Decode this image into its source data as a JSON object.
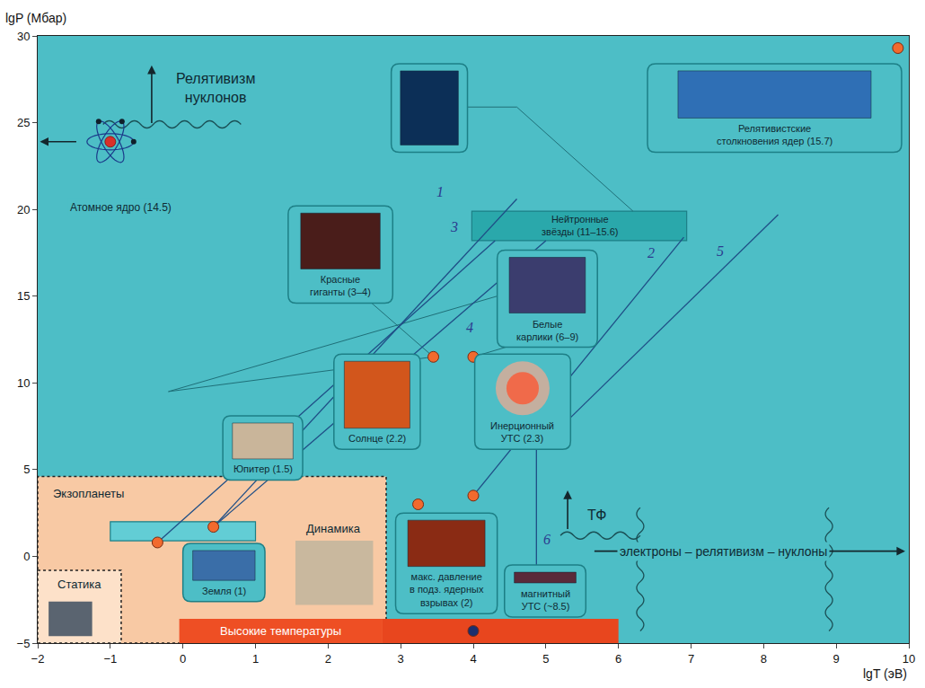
{
  "chart_data": {
    "type": "scatter",
    "x_label": "lgT (эВ)",
    "y_label": "lgP (Мбар)",
    "xlim": [
      -2,
      10
    ],
    "xticks": [
      -2,
      -1,
      0,
      1,
      2,
      3,
      4,
      5,
      6,
      7,
      8,
      9,
      10
    ],
    "ylim": [
      -5,
      30
    ],
    "yticks": [
      -5,
      0,
      5,
      10,
      15,
      20,
      25,
      30
    ],
    "grid": false,
    "color": "#4dbec6",
    "regions": [
      {
        "label": "Экзопланеты",
        "label_x": -1.3,
        "label_y": 3.6,
        "x": [
          -2,
          2.8
        ],
        "y": [
          -5,
          4.6
        ],
        "color": "#f8c9a4",
        "line_style": "dot"
      },
      {
        "label": "Статика",
        "label_x": -1.42,
        "label_y": -1.6,
        "x": [
          -2,
          -0.85
        ],
        "y": [
          -5,
          -0.8
        ],
        "color": "#fde1c9",
        "line_style": "dot"
      },
      {
        "label": "Высокие температуры",
        "label_x": 1.35,
        "label_y": -4.3,
        "x": [
          -0.05,
          2.75
        ],
        "y": [
          -5,
          -3.6
        ],
        "color": "#ee4f24",
        "line_style": "none"
      },
      {
        "x": [
          2.75,
          6.0
        ],
        "y": [
          -5,
          -3.6
        ],
        "color": "#e8461e",
        "line_style": "none"
      },
      {
        "x": [
          -1.0,
          1.0
        ],
        "y": [
          0.9,
          2.0
        ],
        "color": "#62cdd5",
        "line_style": "solid"
      },
      {
        "label": [
          "Нейтронные",
          "звёзды (11–15.6)"
        ],
        "label_x": 5.46,
        "label_y": 19.05,
        "x": [
          3.98,
          6.94
        ],
        "y": [
          18.2,
          19.9
        ],
        "color": "#2aa8ab",
        "line_style": "solid"
      }
    ],
    "callouts": [
      {
        "x": [
          2.87,
          3.92
        ],
        "y": [
          23.3,
          28.4
        ],
        "color": "#0c2f57"
      },
      {
        "label": [
          "Красные",
          "гиганты (3–4)"
        ],
        "x": [
          1.45,
          2.89
        ],
        "y": [
          14.6,
          20.2
        ],
        "color": "#4a1d1a"
      },
      {
        "label": [
          "Релятивистские",
          "столкновения ядер (15.7)"
        ],
        "x": [
          6.4,
          9.9
        ],
        "y": [
          23.3,
          28.4
        ],
        "color": "#2f6fb5"
      },
      {
        "label": [
          "Белые",
          "карлики (6–9)"
        ],
        "x": [
          4.33,
          5.71
        ],
        "y": [
          12.06,
          17.65
        ],
        "color": "#3b3d6e"
      },
      {
        "label": [
          "Солнце (2.2)"
        ],
        "x": [
          2.08,
          3.27
        ],
        "y": [
          6.17,
          11.66
        ],
        "color": "#d2561c"
      },
      {
        "label": [
          "Инерционный",
          "УТС (2.3)"
        ],
        "x": [
          4.02,
          5.34
        ],
        "y": [
          6.17,
          11.66
        ],
        "color": "#f06a4a",
        "marker": "circle"
      },
      {
        "label": [
          "Юпитер (1.5)"
        ],
        "x": [
          0.55,
          1.65
        ],
        "y": [
          4.4,
          8.1
        ],
        "color": "#c9b59a"
      },
      {
        "label": [
          "Земля (1)"
        ],
        "x": [
          0.0,
          1.13
        ],
        "y": [
          -2.6,
          0.75
        ],
        "color": "#3a6ea8"
      },
      {
        "label": [
          "макс. давление",
          "в подз. ядерных",
          "взрывах (2)"
        ],
        "x": [
          2.93,
          4.33
        ],
        "y": [
          -3.3,
          2.5
        ],
        "color": "#8a2b14"
      },
      {
        "label": [
          "магнитный",
          "УТС (~8.5)"
        ],
        "x": [
          4.43,
          5.55
        ],
        "y": [
          -3.5,
          -0.5
        ],
        "color": "#5a2a3a"
      }
    ],
    "images": [
      {
        "label": "Динамика",
        "label_x": 2.08,
        "label_y": 1.6,
        "x": [
          1.55,
          2.62
        ],
        "y": [
          -2.8,
          0.9
        ],
        "color": "#c9b89e"
      },
      {
        "x": [
          -1.85,
          -1.25
        ],
        "y": [
          -4.6,
          -2.6
        ],
        "color": "#5a6470"
      }
    ],
    "points": [
      {
        "color": "#f26a2e",
        "x": [
          -0.35,
          0.42,
          3.24,
          4.0,
          3.45,
          4.0,
          9.85
        ],
        "y": [
          0.8,
          1.7,
          3.0,
          3.5,
          11.5,
          11.5,
          29.3
        ]
      },
      {
        "color": "#1c2f6e",
        "x": [
          4.0
        ],
        "y": [
          -4.3
        ]
      }
    ],
    "curves": [
      {
        "label": "1",
        "x": [
          0.42,
          4.6
        ],
        "y": [
          1.7,
          20.6
        ],
        "label_x": 3.54,
        "label_y": 21.0
      },
      {
        "label": "2",
        "x": [
          4.0,
          6.9
        ],
        "y": [
          3.5,
          18.4
        ],
        "label_x": 6.45,
        "label_y": 17.5
      },
      {
        "label": "3",
        "x": [
          -0.35,
          4.3
        ],
        "y": [
          0.8,
          18.2
        ],
        "label_x": 3.74,
        "label_y": 19.0
      },
      {
        "label": "4",
        "x": [
          0.42,
          5.0
        ],
        "y": [
          1.7,
          18.2
        ],
        "label_x": 3.95,
        "label_y": 13.2
      },
      {
        "label": "5",
        "x": [
          5.34,
          8.2
        ],
        "y": [
          8.0,
          19.7
        ],
        "label_x": 7.4,
        "label_y": 17.6
      },
      {
        "label": "6",
        "x": [
          4.87,
          4.87
        ],
        "y": [
          6.17,
          -0.5
        ],
        "label_x": 5.02,
        "label_y": 1.0
      }
    ],
    "lines": [
      {
        "x": [
          3.92,
          4.6,
          6.2
        ],
        "y": [
          25.9,
          25.9,
          19.9
        ]
      },
      {
        "x": [
          -0.2,
          3.45
        ],
        "y": [
          9.5,
          11.5
        ]
      },
      {
        "x": [
          -0.2,
          4.33
        ],
        "y": [
          9.5,
          15.0
        ]
      },
      {
        "x": [
          2.6,
          3.45
        ],
        "y": [
          14.6,
          11.5
        ]
      },
      {
        "x": [
          4.45,
          4.0
        ],
        "y": [
          12.06,
          11.5
        ]
      }
    ],
    "arrows": [
      {
        "from": [
          -0.43,
          24.9
        ],
        "to": [
          -0.43,
          28.3
        ]
      },
      {
        "from": [
          -1.45,
          23.9
        ],
        "to": [
          -1.97,
          23.9
        ]
      },
      {
        "from": [
          5.3,
          1.5
        ],
        "to": [
          5.3,
          3.8
        ]
      },
      {
        "from": [
          5.65,
          0.3
        ],
        "to": [
          9.95,
          0.3
        ]
      }
    ],
    "wavy": [
      {
        "x": [
          -1.1,
          0.8
        ],
        "y": [
          24.9,
          24.9
        ]
      },
      {
        "x": [
          5.2,
          6.3
        ],
        "y": [
          1.2,
          1.2
        ]
      },
      {
        "x": [
          6.3,
          6.3
        ],
        "y": [
          -4.3,
          2.8
        ]
      },
      {
        "x": [
          8.9,
          8.9
        ],
        "y": [
          -4.3,
          2.8
        ]
      }
    ],
    "headings": [
      {
        "text": [
          "Релятивизм",
          "нуклонов"
        ],
        "x": 0.45,
        "y": 27.0
      },
      {
        "text": "ТФ",
        "x": 5.7,
        "y": 2.4
      }
    ],
    "texts": [
      {
        "text": "Атомное ядро (14.5)",
        "x": -0.85,
        "y": 20.1,
        "icon": [
          -1.0,
          23.9
        ],
        "marker": "atom"
      },
      {
        "text": "электроны – релятивизм – нуклоны",
        "x": 7.45,
        "y": 0.3
      }
    ]
  }
}
